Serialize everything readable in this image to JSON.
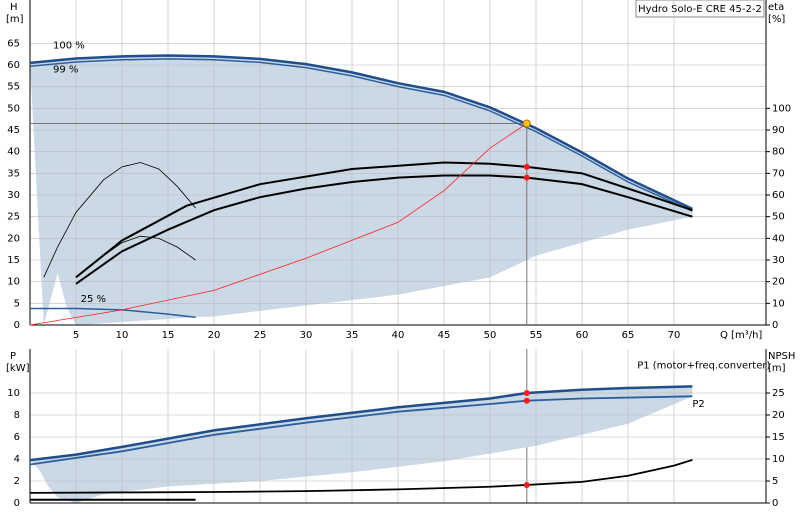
{
  "chart_data": [
    {
      "type": "line",
      "title": "Hydro Solo-E CRE 45-2-2",
      "y_label": "H",
      "y_unit": "[m]",
      "y2_label": "eta",
      "y2_unit": "[%]",
      "x_label": "Q [m³/h]",
      "xlim": [
        0,
        80
      ],
      "ylim": [
        0,
        75
      ],
      "y2lim": [
        0,
        150
      ],
      "xticks": [
        5,
        10,
        15,
        20,
        25,
        30,
        35,
        40,
        45,
        50,
        55,
        60,
        65,
        70
      ],
      "yticks": [
        0,
        5,
        10,
        15,
        20,
        25,
        30,
        35,
        40,
        45,
        50,
        55,
        60,
        65
      ],
      "y2ticks": [
        0,
        10,
        20,
        30,
        40,
        50,
        60,
        70,
        80,
        90,
        100
      ],
      "grid": true,
      "region": {
        "color": "#cbd8e5",
        "x": [
          0,
          5,
          10,
          15,
          20,
          25,
          30,
          35,
          40,
          45,
          50,
          55,
          60,
          65,
          72,
          72,
          65,
          60,
          55,
          50,
          40,
          30,
          20,
          18,
          5,
          4,
          3,
          1.5
        ],
        "values": [
          60.5,
          61.5,
          62,
          62.2,
          62,
          61.4,
          60.2,
          58.3,
          55.8,
          53.8,
          50.2,
          45.4,
          39.8,
          33.8,
          26.8,
          25,
          22,
          19,
          16,
          11,
          7,
          4.5,
          2,
          1.8,
          0,
          4,
          12,
          0
        ]
      },
      "series": [
        {
          "name": "100 %",
          "color": "#1f4e8c",
          "width": 2.5,
          "x": [
            0,
            5,
            10,
            15,
            20,
            25,
            30,
            35,
            40,
            45,
            50,
            55,
            60,
            65,
            72
          ],
          "values": [
            60.5,
            61.5,
            62,
            62.2,
            62,
            61.4,
            60.2,
            58.3,
            55.8,
            53.8,
            50.2,
            45.4,
            39.8,
            33.8,
            26.8
          ]
        },
        {
          "name": "99 %",
          "color": "#2d5f9e",
          "width": 1.5,
          "x": [
            0,
            5,
            10,
            15,
            20,
            25,
            30,
            35,
            40,
            45,
            50,
            55,
            60,
            65,
            72
          ],
          "values": [
            59.7,
            60.7,
            61.2,
            61.4,
            61.2,
            60.6,
            59.4,
            57.5,
            55,
            53,
            49.4,
            44.6,
            39,
            33,
            26.3
          ]
        },
        {
          "name": "25 %",
          "color": "#2d5f9e",
          "width": 1.5,
          "x": [
            0,
            5,
            10,
            15,
            18
          ],
          "values": [
            3.8,
            3.8,
            3.5,
            2.5,
            1.8
          ]
        },
        {
          "color": "#000000",
          "width": 2,
          "axis": "y2",
          "x": [
            5,
            10,
            17,
            25,
            35,
            45,
            50,
            54,
            60,
            65,
            72
          ],
          "values": [
            22,
            39,
            55,
            65,
            72,
            75,
            74.4,
            73,
            70,
            63,
            53
          ]
        },
        {
          "color": "#000000",
          "width": 2,
          "axis": "y2",
          "x": [
            5,
            10,
            15,
            20,
            25,
            30,
            35,
            40,
            45,
            50,
            54,
            60,
            65,
            72
          ],
          "values": [
            19,
            34,
            44,
            53,
            59,
            63,
            66,
            68,
            69,
            69,
            68,
            65,
            59,
            50
          ]
        },
        {
          "color": "#000000",
          "width": 0.8,
          "axis": "y2",
          "x": [
            1.5,
            3,
            5,
            8,
            10,
            12,
            14,
            16,
            18
          ],
          "values": [
            22,
            36,
            52,
            67,
            73,
            75,
            72,
            64,
            54
          ]
        },
        {
          "color": "#000000",
          "width": 0.8,
          "axis": "y2",
          "x": [
            5,
            8,
            10,
            12,
            14,
            16,
            18
          ],
          "values": [
            22,
            32,
            38,
            41,
            40,
            36,
            30
          ]
        },
        {
          "color": "#ff2020",
          "width": 0.8,
          "x": [
            0,
            10,
            20,
            30,
            40,
            45,
            50,
            54
          ],
          "values": [
            0,
            3.5,
            8,
            15.4,
            23.7,
            31,
            40.8,
            46.5
          ]
        }
      ],
      "duty_point": {
        "x": 54,
        "y": 46.5,
        "color": "#f5c518"
      },
      "markers": [
        {
          "x": 54,
          "y": 73,
          "axis": "y2"
        },
        {
          "x": 54,
          "y": 68,
          "axis": "y2"
        }
      ]
    },
    {
      "type": "line",
      "y_label": "P",
      "y_unit": "[kW]",
      "y2_label": "NPSH",
      "y2_unit": "[m]",
      "xlim": [
        0,
        80
      ],
      "ylim": [
        0,
        14
      ],
      "y2lim": [
        0,
        35
      ],
      "xticks": [
        5,
        10,
        15,
        20,
        25,
        30,
        35,
        40,
        45,
        50,
        55,
        60,
        65,
        70
      ],
      "yticks": [
        0,
        2,
        4,
        6,
        8,
        10
      ],
      "y2ticks": [
        0,
        5,
        10,
        15,
        20,
        25
      ],
      "grid": true,
      "region": {
        "color": "#cbd8e5",
        "x": [
          0,
          5,
          10,
          20,
          30,
          40,
          50,
          54,
          60,
          65,
          72,
          72,
          65,
          55,
          45,
          35,
          25,
          15,
          8,
          5,
          3,
          2,
          1
        ],
        "values": [
          3.9,
          4.4,
          5.1,
          6.6,
          7.7,
          8.7,
          9.5,
          10,
          10.3,
          10.45,
          10.6,
          9.7,
          7.2,
          5.2,
          3.8,
          2.8,
          2,
          1.5,
          0.8,
          0,
          0.5,
          1.5,
          3
        ]
      },
      "series": [
        {
          "name": "P1 (motor+freq.converter)",
          "color": "#1f4e8c",
          "width": 2.5,
          "x": [
            0,
            5,
            10,
            20,
            30,
            40,
            50,
            54,
            60,
            65,
            72
          ],
          "values": [
            3.9,
            4.4,
            5.1,
            6.6,
            7.7,
            8.7,
            9.5,
            10,
            10.3,
            10.45,
            10.6
          ]
        },
        {
          "name": "P2",
          "color": "#2d5f9e",
          "width": 1.8,
          "x": [
            0,
            10,
            20,
            30,
            40,
            50,
            54,
            60,
            72
          ],
          "values": [
            3.5,
            4.7,
            6.2,
            7.3,
            8.3,
            9,
            9.3,
            9.5,
            9.7
          ]
        },
        {
          "color": "#000000",
          "width": 1.8,
          "axis": "y2",
          "x": [
            0,
            10,
            20,
            30,
            40,
            50,
            54,
            60,
            65,
            70,
            72
          ],
          "values": [
            2.3,
            2.4,
            2.5,
            2.7,
            3.1,
            3.7,
            4.1,
            4.8,
            6.2,
            8.5,
            9.8
          ]
        },
        {
          "color": "#000000",
          "width": 2,
          "x": [
            0,
            18
          ],
          "values": [
            0.3,
            0.3
          ]
        }
      ],
      "markers": [
        {
          "x": 54,
          "y": 10
        },
        {
          "x": 54,
          "y": 9.3
        },
        {
          "x": 54,
          "y": 4.1,
          "axis": "y2"
        }
      ]
    }
  ]
}
